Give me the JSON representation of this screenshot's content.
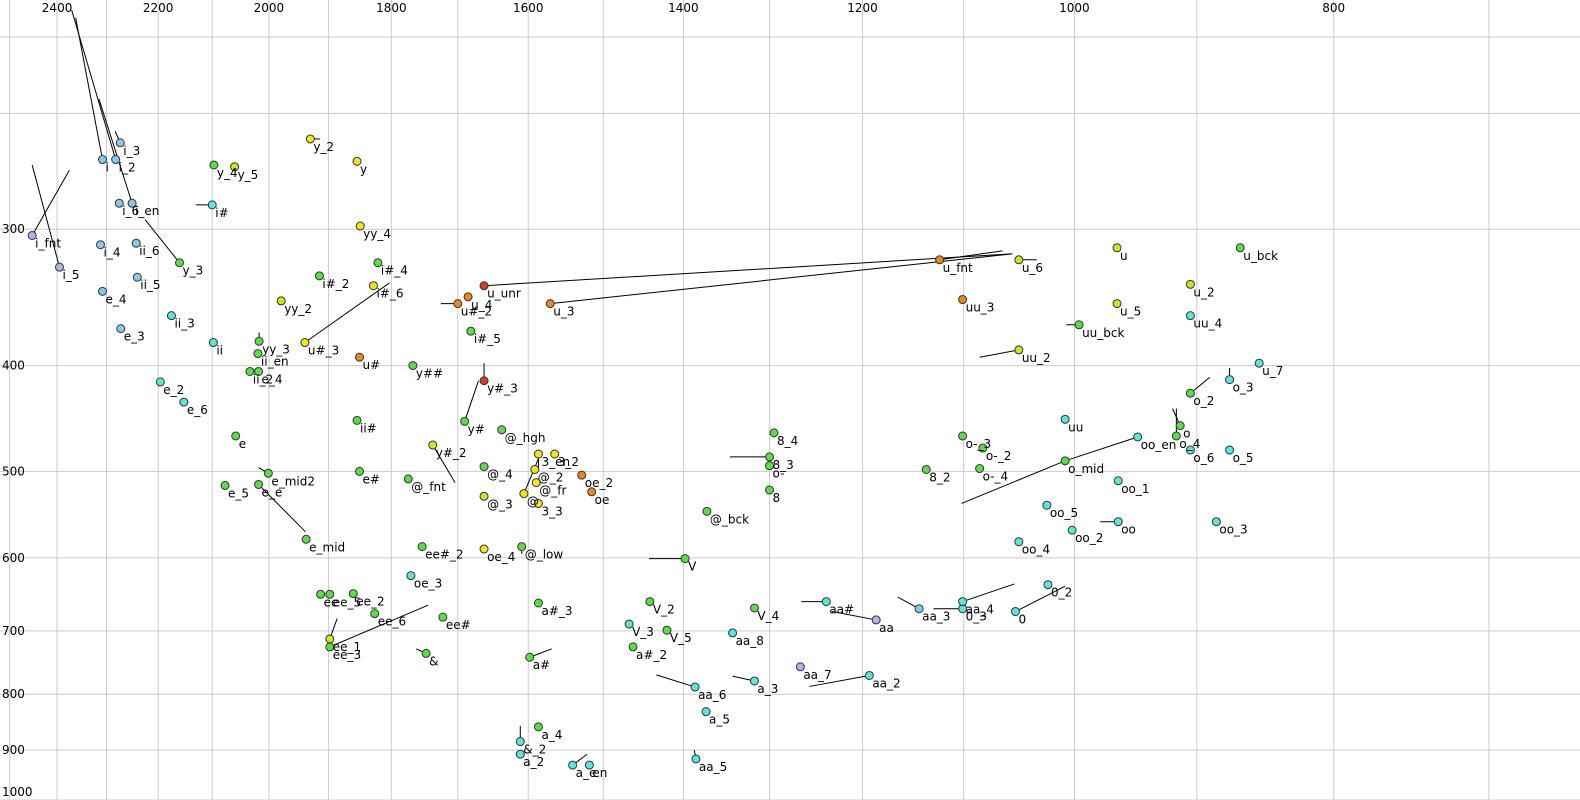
{
  "chart_data": {
    "type": "scatter",
    "title": "",
    "xlabel": "",
    "ylabel": "",
    "x_axis": {
      "reversed": true,
      "scale": "log",
      "range": [
        2510,
        650
      ],
      "ticks": [
        2400,
        2200,
        2000,
        1800,
        1600,
        1400,
        1200,
        1000,
        800
      ]
    },
    "y_axis": {
      "reversed": true,
      "scale": "log",
      "range": [
        185,
        1000
      ],
      "ticks": [
        300,
        400,
        500,
        600,
        700,
        800,
        900,
        1000
      ]
    },
    "grid": true,
    "colors": {
      "red": "#d83a1c",
      "orange": "#e9881d",
      "yellow": "#f2e51d",
      "yellowgreen": "#c5ea24",
      "green": "#5ddc4a",
      "cyan": "#5de6d8",
      "lightblue": "#88c8ee",
      "blue": "#a7b7ee"
    },
    "points": [
      {
        "label": "i_fnt",
        "x": 2452,
        "y": 304,
        "color": "blue",
        "seg": [
          2375,
          265
        ]
      },
      {
        "label": "i_5",
        "x": 2395,
        "y": 325,
        "color": "blue",
        "seg": [
          2452,
          262
        ]
      },
      {
        "label": "i_4",
        "x": 2312,
        "y": 310,
        "color": "lightblue"
      },
      {
        "label": "i",
        "x": 2308,
        "y": 259,
        "color": "lightblue",
        "seg": [
          2362,
          192
        ]
      },
      {
        "label": "i_2",
        "x": 2282,
        "y": 259,
        "color": "lightblue",
        "seg": [
          2370,
          189
        ]
      },
      {
        "label": "i_3",
        "x": 2273,
        "y": 250,
        "color": "lightblue",
        "seg": [
          2283,
          244
        ]
      },
      {
        "label": "i_6",
        "x": 2275,
        "y": 284,
        "color": "lightblue"
      },
      {
        "label": "i_en",
        "x": 2250,
        "y": 284,
        "color": "lightblue",
        "seg": [
          2315,
          228
        ]
      },
      {
        "label": "ii_6",
        "x": 2242,
        "y": 309,
        "color": "lightblue"
      },
      {
        "label": "ii_5",
        "x": 2240,
        "y": 332,
        "color": "lightblue"
      },
      {
        "label": "e_4",
        "x": 2308,
        "y": 342,
        "color": "lightblue"
      },
      {
        "label": "e_3",
        "x": 2272,
        "y": 370,
        "color": "lightblue"
      },
      {
        "label": "ii_3",
        "x": 2175,
        "y": 360,
        "color": "cyan"
      },
      {
        "label": "e_2",
        "x": 2196,
        "y": 414,
        "color": "cyan"
      },
      {
        "label": "e_6",
        "x": 2152,
        "y": 432,
        "color": "cyan"
      },
      {
        "label": "y_3",
        "x": 2160,
        "y": 322,
        "color": "green",
        "seg": [
          2225,
          294
        ]
      },
      {
        "label": "i#",
        "x": 2100,
        "y": 285,
        "color": "cyan",
        "seg": [
          2130,
          285
        ]
      },
      {
        "label": "y_4",
        "x": 2097,
        "y": 262,
        "color": "green"
      },
      {
        "label": "y_5",
        "x": 2060,
        "y": 263,
        "color": "yellowgreen"
      },
      {
        "label": "ii",
        "x": 2098,
        "y": 381,
        "color": "cyan"
      },
      {
        "label": "e",
        "x": 2058,
        "y": 464,
        "color": "green"
      },
      {
        "label": "e_5",
        "x": 2077,
        "y": 515,
        "color": "green"
      },
      {
        "label": "e_e",
        "x": 2018,
        "y": 514,
        "color": "green",
        "seg": [
          1938,
          568
        ]
      },
      {
        "label": "e_mid2",
        "x": 2001,
        "y": 502,
        "color": "green",
        "seg": [
          2018,
          496
        ]
      },
      {
        "label": "e_mid",
        "x": 1937,
        "y": 577,
        "color": "green"
      },
      {
        "label": "yy_3",
        "x": 2017,
        "y": 380,
        "color": "green",
        "seg": [
          2017,
          373
        ]
      },
      {
        "label": "ii_en",
        "x": 2019,
        "y": 390,
        "color": "green"
      },
      {
        "label": "ii_2",
        "x": 2033,
        "y": 405,
        "color": "green"
      },
      {
        "label": "e_4",
        "x": 2018,
        "y": 405,
        "color": "green"
      },
      {
        "label": "yy_2",
        "x": 1979,
        "y": 349,
        "color": "yellowgreen"
      },
      {
        "label": "i#_2",
        "x": 1915,
        "y": 331,
        "color": "green"
      },
      {
        "label": "u#_3",
        "x": 1939,
        "y": 381,
        "color": "yellow",
        "seg": [
          1803,
          336
        ]
      },
      {
        "label": "y_2",
        "x": 1930,
        "y": 248,
        "color": "yellow",
        "seg": [
          1914,
          248
        ]
      },
      {
        "label": "y",
        "x": 1854,
        "y": 260,
        "color": "yellow"
      },
      {
        "label": "yy_4",
        "x": 1849,
        "y": 298,
        "color": "yellow"
      },
      {
        "label": "i#_4",
        "x": 1821,
        "y": 322,
        "color": "green"
      },
      {
        "label": "i#_6",
        "x": 1828,
        "y": 338,
        "color": "yellow"
      },
      {
        "label": "u#",
        "x": 1850,
        "y": 393,
        "color": "orange"
      },
      {
        "label": "ii#",
        "x": 1854,
        "y": 449,
        "color": "green"
      },
      {
        "label": "e#",
        "x": 1850,
        "y": 500,
        "color": "green"
      },
      {
        "label": "y##",
        "x": 1767,
        "y": 400,
        "color": "green"
      },
      {
        "label": "@_fnt",
        "x": 1774,
        "y": 508,
        "color": "green"
      },
      {
        "label": "y#_2",
        "x": 1737,
        "y": 473,
        "color": "yellowgreen",
        "seg": [
          1704,
          512
        ]
      },
      {
        "label": "ee#_2",
        "x": 1753,
        "y": 586,
        "color": "green"
      },
      {
        "label": "oe_3",
        "x": 1770,
        "y": 623,
        "color": "cyan"
      },
      {
        "label": "ee_2",
        "x": 1860,
        "y": 647,
        "color": "green"
      },
      {
        "label": "ee_5",
        "x": 1898,
        "y": 648,
        "color": "green"
      },
      {
        "label": "ee",
        "x": 1913,
        "y": 648,
        "color": "green"
      },
      {
        "label": "ee_6",
        "x": 1826,
        "y": 675,
        "color": "green"
      },
      {
        "label": "ee_1",
        "x": 1898,
        "y": 712,
        "color": "yellowgreen",
        "seg": [
          1886,
          682
        ]
      },
      {
        "label": "ee_3",
        "x": 1898,
        "y": 724,
        "color": "green",
        "seg": [
          1744,
          663
        ]
      },
      {
        "label": "ee#",
        "x": 1722,
        "y": 680,
        "color": "green"
      },
      {
        "label": "&",
        "x": 1747,
        "y": 734,
        "color": "green",
        "seg": [
          1762,
          727
        ]
      },
      {
        "label": "u_4",
        "x": 1685,
        "y": 346,
        "color": "orange"
      },
      {
        "label": "u_unr",
        "x": 1662,
        "y": 338,
        "color": "red",
        "seg": [
          1055,
          316
        ]
      },
      {
        "label": "u#_2",
        "x": 1700,
        "y": 351,
        "color": "orange",
        "seg": [
          1725,
          351
        ]
      },
      {
        "label": "u_3",
        "x": 1570,
        "y": 351,
        "color": "orange",
        "seg": [
          1055,
          316
        ]
      },
      {
        "label": "i#_5",
        "x": 1681,
        "y": 372,
        "color": "green"
      },
      {
        "label": "y#_3",
        "x": 1662,
        "y": 413,
        "color": "red",
        "seg": [
          1662,
          398
        ]
      },
      {
        "label": "y#",
        "x": 1690,
        "y": 450,
        "color": "green",
        "seg": [
          1670,
          413
        ]
      },
      {
        "label": "@_hgh",
        "x": 1637,
        "y": 458,
        "color": "green"
      },
      {
        "label": "@_4",
        "x": 1662,
        "y": 495,
        "color": "green"
      },
      {
        "label": "@_3",
        "x": 1662,
        "y": 527,
        "color": "yellowgreen"
      },
      {
        "label": "oe_4",
        "x": 1662,
        "y": 589,
        "color": "yellow"
      },
      {
        "label": "@_low",
        "x": 1609,
        "y": 586,
        "color": "green",
        "seg": [
          1609,
          595
        ]
      },
      {
        "label": "@",
        "x": 1606,
        "y": 524,
        "color": "yellow",
        "seg": [
          1585,
          485
        ]
      },
      {
        "label": "@_2",
        "x": 1591,
        "y": 498,
        "color": "yellow"
      },
      {
        "label": "@_fr",
        "x": 1589,
        "y": 512,
        "color": "yellow"
      },
      {
        "label": "3_en",
        "x": 1586,
        "y": 482,
        "color": "yellow",
        "seg": [
          1586,
          498
        ]
      },
      {
        "label": "3_2",
        "x": 1564,
        "y": 482,
        "color": "yellow"
      },
      {
        "label": "3_3",
        "x": 1586,
        "y": 535,
        "color": "yellow"
      },
      {
        "label": "oe_2",
        "x": 1528,
        "y": 504,
        "color": "orange"
      },
      {
        "label": "oe",
        "x": 1515,
        "y": 522,
        "color": "orange"
      },
      {
        "label": "a#_3",
        "x": 1586,
        "y": 660,
        "color": "green"
      },
      {
        "label": "a#",
        "x": 1598,
        "y": 740,
        "color": "green",
        "seg": [
          1568,
          727
        ]
      },
      {
        "label": "a_4",
        "x": 1586,
        "y": 857,
        "color": "green"
      },
      {
        "label": "&_2",
        "x": 1611,
        "y": 884,
        "color": "cyan",
        "seg": [
          1611,
          855
        ]
      },
      {
        "label": "a_2",
        "x": 1611,
        "y": 908,
        "color": "cyan"
      },
      {
        "label": "a_e",
        "x": 1540,
        "y": 929,
        "color": "cyan",
        "seg": [
          1521,
          908
        ]
      },
      {
        "label": "en",
        "x": 1518,
        "y": 929,
        "color": "cyan"
      },
      {
        "label": "aa_5",
        "x": 1385,
        "y": 917,
        "color": "cyan",
        "seg": [
          1387,
          900
        ]
      },
      {
        "label": "aa_6",
        "x": 1386,
        "y": 788,
        "color": "cyan",
        "seg": [
          1433,
          768
        ]
      },
      {
        "label": "a_5",
        "x": 1373,
        "y": 830,
        "color": "cyan"
      },
      {
        "label": "V_2",
        "x": 1441,
        "y": 658,
        "color": "green"
      },
      {
        "label": "V_3",
        "x": 1467,
        "y": 690,
        "color": "cyan"
      },
      {
        "label": "a#_2",
        "x": 1462,
        "y": 724,
        "color": "green"
      },
      {
        "label": "V_5",
        "x": 1420,
        "y": 699,
        "color": "green"
      },
      {
        "label": "V",
        "x": 1398,
        "y": 601,
        "color": "green",
        "seg": [
          1442,
          601
        ]
      },
      {
        "label": "@_bck",
        "x": 1372,
        "y": 544,
        "color": "green"
      },
      {
        "label": "V_4",
        "x": 1317,
        "y": 667,
        "color": "green"
      },
      {
        "label": "aa_8",
        "x": 1342,
        "y": 703,
        "color": "cyan"
      },
      {
        "label": "a_3",
        "x": 1317,
        "y": 778,
        "color": "cyan",
        "seg": [
          1342,
          770
        ]
      },
      {
        "label": "8_4",
        "x": 1295,
        "y": 461,
        "color": "green"
      },
      {
        "label": "8_3",
        "x": 1300,
        "y": 485,
        "color": "green",
        "seg": [
          1345,
          485
        ]
      },
      {
        "label": "o-",
        "x": 1300,
        "y": 494,
        "color": "green"
      },
      {
        "label": "8",
        "x": 1300,
        "y": 520,
        "color": "green"
      },
      {
        "label": "aa_7",
        "x": 1266,
        "y": 755,
        "color": "blue"
      },
      {
        "label": "aa_2",
        "x": 1193,
        "y": 769,
        "color": "cyan",
        "seg": [
          1256,
          787
        ]
      },
      {
        "label": "aa#",
        "x": 1238,
        "y": 658,
        "color": "cyan",
        "seg": [
          1265,
          658
        ]
      },
      {
        "label": "aa",
        "x": 1186,
        "y": 684,
        "color": "blue",
        "seg": [
          1232,
          672
        ]
      },
      {
        "label": "aa_3",
        "x": 1143,
        "y": 668,
        "color": "lightblue",
        "seg": [
          1164,
          652
        ]
      },
      {
        "label": "0_3",
        "x": 1101,
        "y": 668,
        "color": "cyan",
        "seg": [
          1129,
          668
        ]
      },
      {
        "label": "aa_4",
        "x": 1101,
        "y": 658,
        "color": "cyan",
        "seg": [
          1053,
          634
        ]
      },
      {
        "label": "0",
        "x": 1052,
        "y": 672,
        "color": "cyan",
        "seg": [
          1008,
          637
        ]
      },
      {
        "label": "0_2",
        "x": 1023,
        "y": 635,
        "color": "cyan"
      },
      {
        "label": "u_fnt",
        "x": 1123,
        "y": 320,
        "color": "orange",
        "seg": [
          1064,
          314
        ]
      },
      {
        "label": "u_6",
        "x": 1049,
        "y": 320,
        "color": "yellowgreen",
        "seg": [
          1033,
          320
        ]
      },
      {
        "label": "uu_3",
        "x": 1101,
        "y": 348,
        "color": "orange"
      },
      {
        "label": "uu_2",
        "x": 1049,
        "y": 387,
        "color": "yellowgreen",
        "seg": [
          1085,
          393
        ]
      },
      {
        "label": "uu_bck",
        "x": 996,
        "y": 367,
        "color": "green",
        "seg": [
          1007,
          367
        ]
      },
      {
        "label": "u",
        "x": 964,
        "y": 312,
        "color": "yellowgreen"
      },
      {
        "label": "u_5",
        "x": 964,
        "y": 351,
        "color": "yellowgreen"
      },
      {
        "label": "u_bck",
        "x": 867,
        "y": 312,
        "color": "green"
      },
      {
        "label": "u_2",
        "x": 905,
        "y": 337,
        "color": "yellowgreen"
      },
      {
        "label": "uu_4",
        "x": 905,
        "y": 360,
        "color": "cyan"
      },
      {
        "label": "u_7",
        "x": 853,
        "y": 398,
        "color": "cyan"
      },
      {
        "label": "o_3",
        "x": 875,
        "y": 412,
        "color": "cyan",
        "seg": [
          875,
          402
        ]
      },
      {
        "label": "o_2",
        "x": 905,
        "y": 424,
        "color": "green",
        "seg": [
          890,
          410
        ]
      },
      {
        "label": "uu",
        "x": 1008,
        "y": 448,
        "color": "cyan"
      },
      {
        "label": "o-_3",
        "x": 1101,
        "y": 464,
        "color": "green"
      },
      {
        "label": "o-_2",
        "x": 1082,
        "y": 476,
        "color": "green"
      },
      {
        "label": "o-_4",
        "x": 1085,
        "y": 497,
        "color": "green"
      },
      {
        "label": "8_2",
        "x": 1136,
        "y": 498,
        "color": "green"
      },
      {
        "label": "o_mid",
        "x": 1008,
        "y": 489,
        "color": "green",
        "seg": [
          1102,
          535
        ]
      },
      {
        "label": "oo_en",
        "x": 947,
        "y": 465,
        "color": "cyan",
        "seg": [
          1008,
          489
        ]
      },
      {
        "label": "o_4",
        "x": 916,
        "y": 464,
        "color": "green",
        "seg": [
          916,
          438
        ]
      },
      {
        "label": "o",
        "x": 913,
        "y": 454,
        "color": "green",
        "seg": [
          919,
          438
        ]
      },
      {
        "label": "o_6",
        "x": 905,
        "y": 478,
        "color": "cyan"
      },
      {
        "label": "o_5",
        "x": 875,
        "y": 478,
        "color": "cyan"
      },
      {
        "label": "oo_1",
        "x": 963,
        "y": 510,
        "color": "cyan"
      },
      {
        "label": "oo",
        "x": 963,
        "y": 556,
        "color": "cyan",
        "seg": [
          978,
          556
        ]
      },
      {
        "label": "oo_5",
        "x": 1024,
        "y": 537,
        "color": "cyan"
      },
      {
        "label": "oo_2",
        "x": 1002,
        "y": 566,
        "color": "cyan"
      },
      {
        "label": "oo_3",
        "x": 885,
        "y": 556,
        "color": "cyan"
      },
      {
        "label": "oo_4",
        "x": 1049,
        "y": 580,
        "color": "cyan"
      }
    ]
  }
}
